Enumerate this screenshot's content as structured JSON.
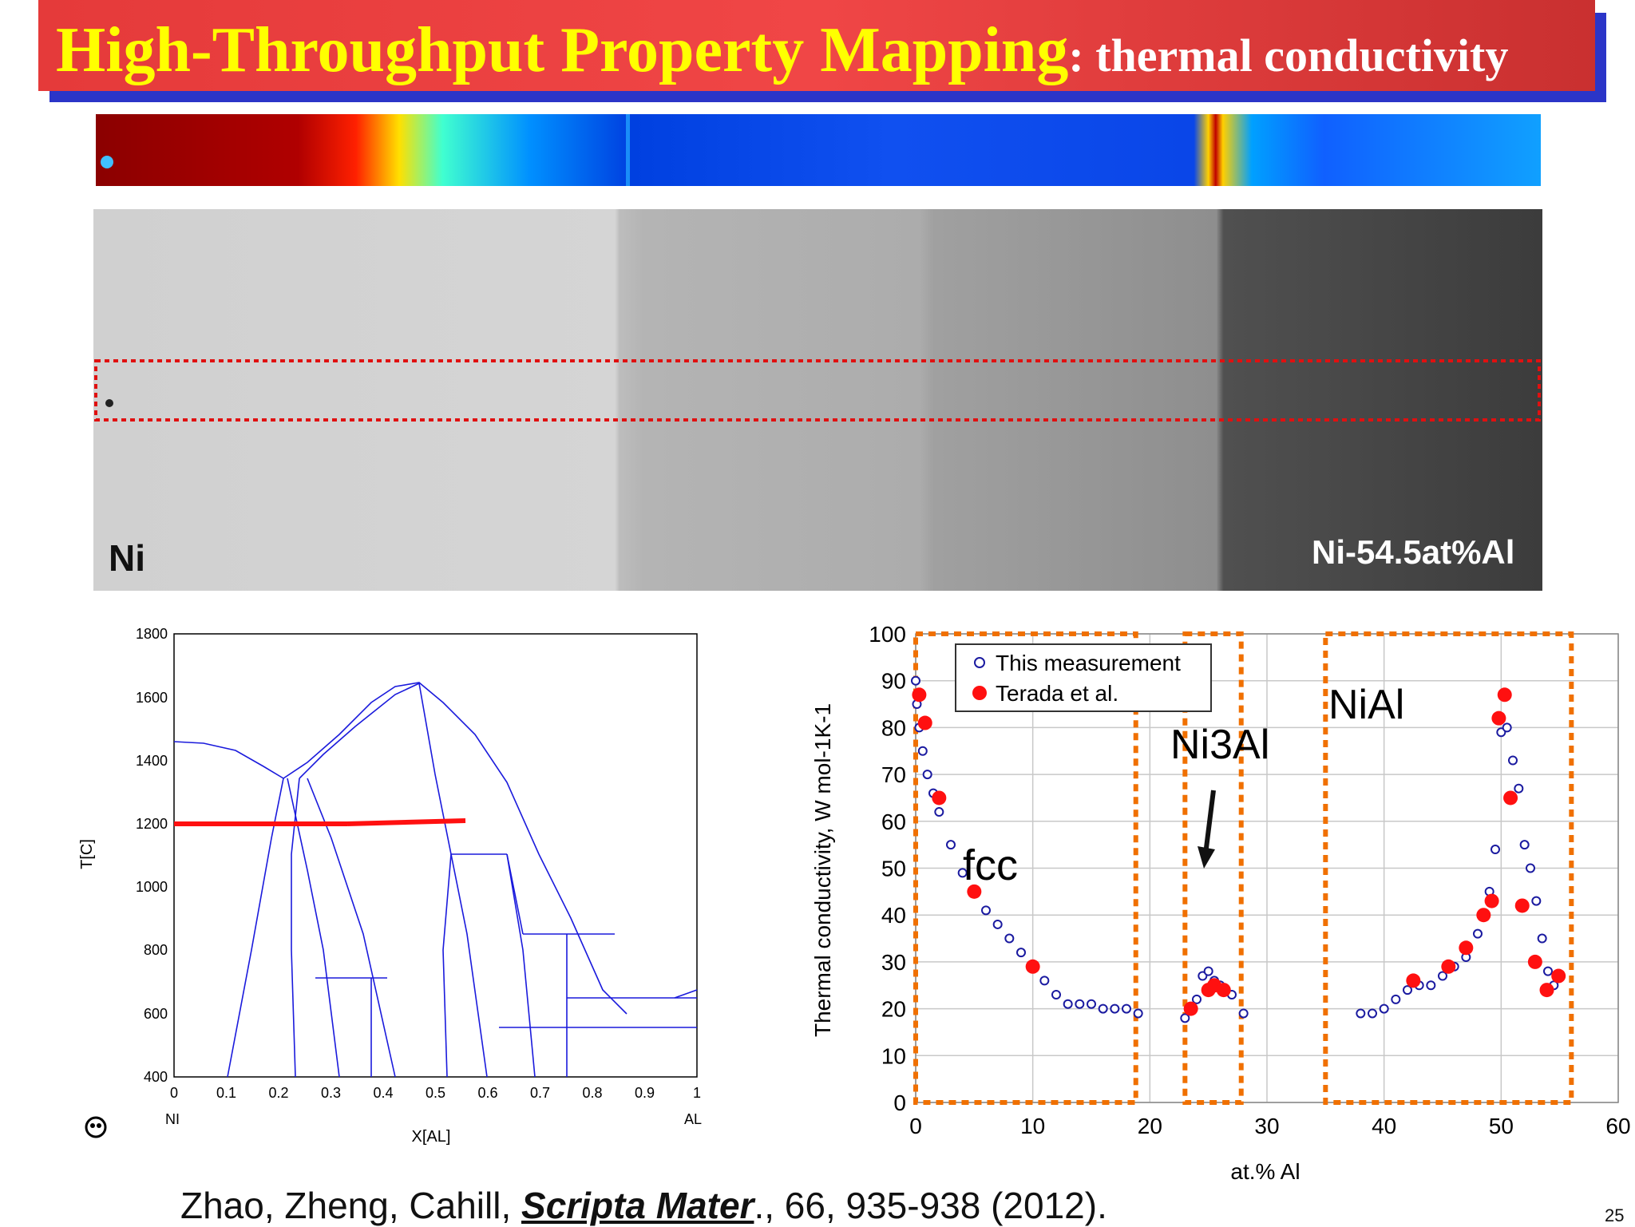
{
  "title": {
    "main": "High-Throughput Property Mapping",
    "sub": ": thermal conductivity"
  },
  "micrograph": {
    "left_label": "Ni",
    "right_label": "Ni-54.5at%Al"
  },
  "phase_diagram": {
    "xlabel": "X[AL]",
    "ylabel": "T[C]",
    "x_ticks": [
      "0",
      "0.1",
      "0.2",
      "0.3",
      "0.4",
      "0.5",
      "0.6",
      "0.7",
      "0.8",
      "0.9",
      "1"
    ],
    "y_ticks": [
      "400",
      "600",
      "800",
      "1000",
      "1200",
      "1400",
      "1600",
      "1800"
    ],
    "left_element": "NI",
    "right_element": "AL"
  },
  "chart_data": {
    "type": "scatter",
    "xlabel": "at.% Al",
    "ylabel": "Thermal conductivity, W mol-1K-1",
    "xlim": [
      0,
      60
    ],
    "ylim": [
      0,
      100
    ],
    "x_ticks": [
      "0",
      "10",
      "20",
      "30",
      "40",
      "50",
      "60"
    ],
    "y_ticks": [
      "0",
      "10",
      "20",
      "30",
      "40",
      "50",
      "60",
      "70",
      "80",
      "90",
      "100"
    ],
    "legend": [
      "This measurement",
      "Terada et al."
    ],
    "region_labels": {
      "fcc": "fcc",
      "ni3al": "Ni3Al",
      "nial": "NiAl"
    },
    "series": [
      {
        "name": "Terada et al.",
        "x": [
          0.3,
          0.8,
          2.0,
          5.0,
          10.0,
          23.5,
          25.0,
          25.5,
          26.3,
          42.5,
          45.5,
          47.0,
          48.5,
          49.2,
          49.8,
          50.3,
          50.8,
          51.8,
          52.9,
          53.9,
          54.9
        ],
        "y": [
          87,
          81,
          65,
          45,
          29,
          20,
          24,
          25,
          24,
          26,
          29,
          33,
          40,
          43,
          82,
          87,
          65,
          42,
          30,
          24,
          27
        ]
      },
      {
        "name": "This measurement",
        "x": [
          0,
          0.1,
          0.3,
          0.6,
          1,
          1.5,
          2,
          3,
          4,
          5,
          6,
          7,
          8,
          9,
          10,
          11,
          12,
          13,
          14,
          15,
          16,
          17,
          18,
          19,
          23,
          24,
          24.5,
          25,
          25.5,
          26,
          27,
          28,
          38,
          39,
          40,
          41,
          42,
          43,
          44,
          45,
          46,
          47,
          48,
          48.5,
          49,
          49.5,
          50,
          50.5,
          51,
          51.5,
          52,
          52.5,
          53,
          53.5,
          54,
          54.5,
          55
        ],
        "y": [
          90,
          85,
          80,
          75,
          70,
          66,
          62,
          55,
          49,
          45,
          41,
          38,
          35,
          32,
          29,
          26,
          23,
          21,
          21,
          21,
          20,
          20,
          20,
          19,
          18,
          22,
          27,
          28,
          26,
          25,
          23,
          19,
          19,
          19,
          20,
          22,
          24,
          25,
          25,
          27,
          29,
          31,
          36,
          40,
          45,
          54,
          79,
          80,
          73,
          67,
          55,
          50,
          43,
          35,
          28,
          25,
          27
        ]
      }
    ]
  },
  "citation": {
    "authors": "Zhao, Zheng, Cahill, ",
    "journal": "Scripta Mater",
    "rest": "., 66, 935-938 (2012)."
  },
  "slide_number": "25"
}
